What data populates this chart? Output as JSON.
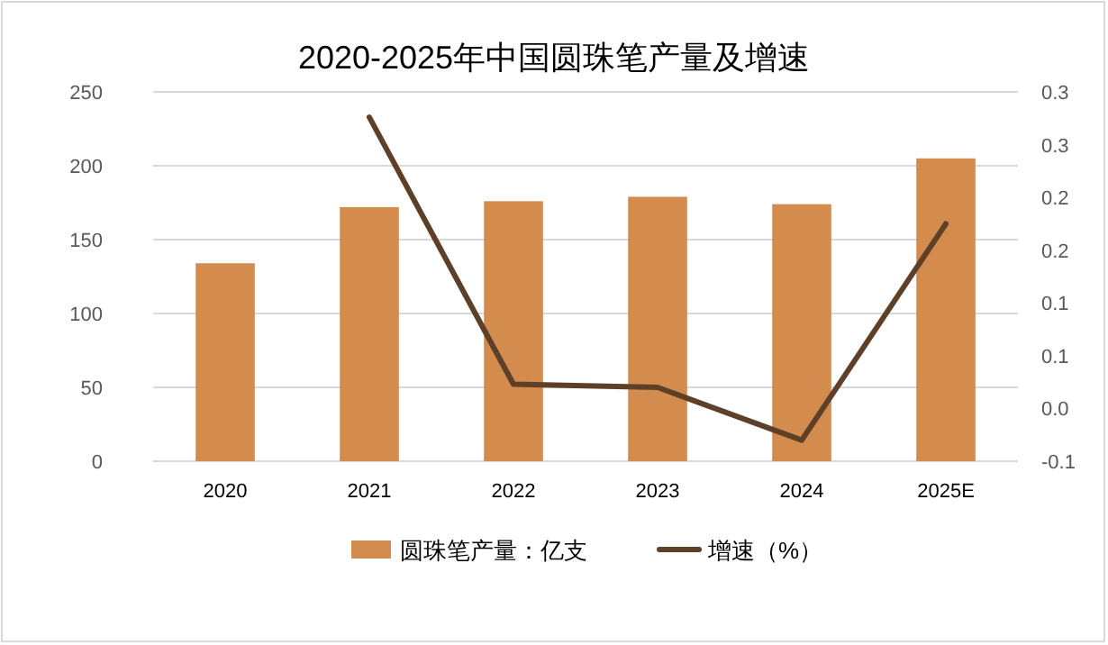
{
  "chart_data": {
    "type": "bar",
    "title": "2020-2025年中国圆珠笔产量及增速",
    "categories": [
      "2020",
      "2021",
      "2022",
      "2023",
      "2024",
      "2025E"
    ],
    "series": [
      {
        "name": "圆珠笔产量：亿支",
        "color": "#d38b4e",
        "values": [
          134,
          172,
          176,
          179,
          174,
          205
        ]
      },
      {
        "name": "增速（%）",
        "type": "line",
        "axis": "y2",
        "color": "#5e4029",
        "values": [
          null,
          0.276,
          0.023,
          0.02,
          -0.03,
          0.175
        ]
      }
    ],
    "ylim": [
      0,
      250
    ],
    "yticks": [
      0,
      50,
      100,
      150,
      200,
      250
    ],
    "y2lim": [
      -0.05,
      0.3
    ],
    "y2ticks": [
      {
        "value": -0.05,
        "label": "-0.1"
      },
      {
        "value": 0,
        "label": "0.0"
      },
      {
        "value": 0.05,
        "label": "0.1"
      },
      {
        "value": 0.1,
        "label": "0.1"
      },
      {
        "value": 0.15,
        "label": "0.2"
      },
      {
        "value": 0.2,
        "label": "0.2"
      },
      {
        "value": 0.25,
        "label": "0.3"
      },
      {
        "value": 0.3,
        "label": "0.3"
      }
    ],
    "grid": "y",
    "legend": "bottom"
  }
}
